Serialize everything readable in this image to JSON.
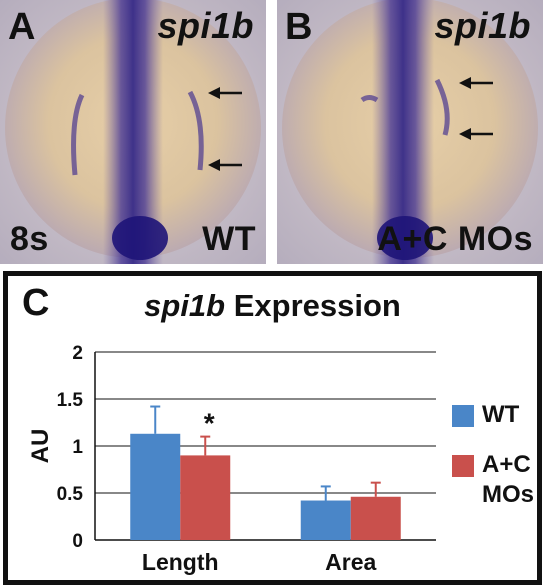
{
  "panels": [
    {
      "letter": "A",
      "gene": "spi1b",
      "stage": "8s",
      "condition": "WT"
    },
    {
      "letter": "B",
      "gene": "spi1b",
      "stage": "",
      "condition": "A+C MOs"
    }
  ],
  "chart_panel_letter": "C",
  "chart_data": {
    "type": "bar",
    "title_gene": "spi1b",
    "title_rest": "Expression",
    "ylabel": "AU",
    "xlabel": "",
    "ylim": [
      0,
      2
    ],
    "yticks": [
      "0",
      "0.5",
      "1",
      "1.5",
      "2"
    ],
    "grid": true,
    "legend_position": "right",
    "categories": [
      "Length",
      "Area"
    ],
    "series": [
      {
        "name": "WT",
        "color": "#4a86c8",
        "values": [
          1.13,
          0.42
        ],
        "errors": [
          0.29,
          0.15
        ]
      },
      {
        "name": "A+C MOs",
        "color": "#c9504c",
        "values": [
          0.9,
          0.46
        ],
        "errors": [
          0.2,
          0.15
        ]
      }
    ],
    "annotations": [
      {
        "text": "*",
        "category": "Length",
        "series": "A+C MOs"
      }
    ]
  }
}
